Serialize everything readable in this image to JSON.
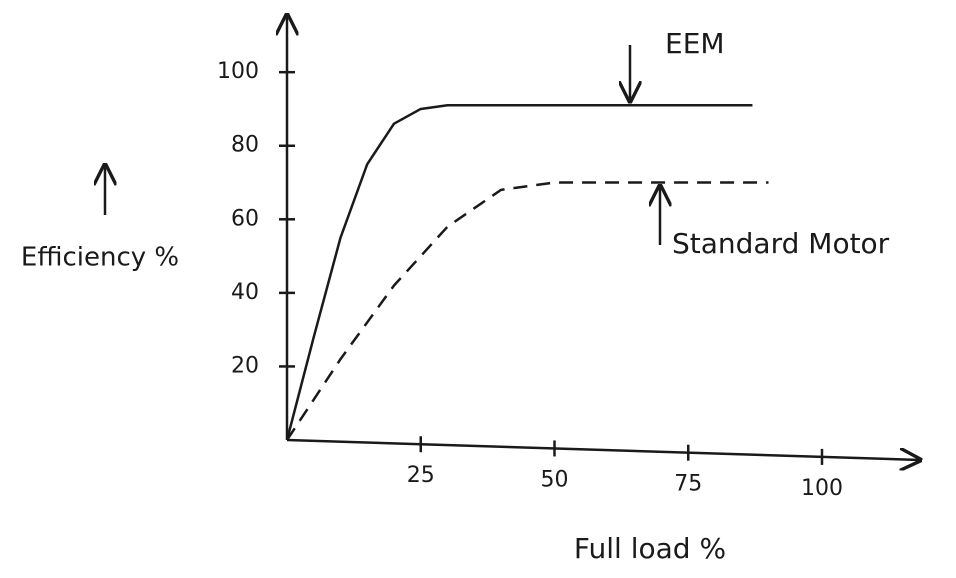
{
  "chart_data": {
    "type": "line",
    "x_label": "Full load %",
    "y_label": "Efficiency %",
    "annotations": [
      "EEM",
      "Standard Motor"
    ],
    "series": [
      {
        "name": "EEM",
        "color": "#1a1a1a",
        "line_style": "solid",
        "x": [
          0,
          5,
          10,
          15,
          20,
          25,
          30,
          50,
          70,
          87
        ],
        "values": [
          0,
          28,
          55,
          75,
          86,
          90,
          91,
          91,
          91,
          91
        ]
      },
      {
        "name": "Standard Motor",
        "color": "#1a1a1a",
        "line_style": "dashed",
        "x": [
          0,
          10,
          20,
          30,
          40,
          50,
          70,
          90
        ],
        "values": [
          0,
          22,
          42,
          58,
          68,
          70,
          70,
          70
        ]
      }
    ],
    "xlim": [
      0,
      120
    ],
    "xticks": [
      25,
      50,
      75,
      100
    ],
    "ylim": [
      0,
      115
    ],
    "yticks": [
      20,
      40,
      60,
      80,
      100
    ]
  }
}
